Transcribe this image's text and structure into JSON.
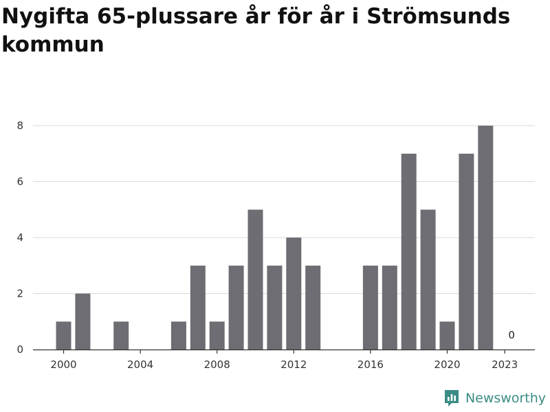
{
  "chart_data": {
    "type": "bar",
    "title": "Nygifta 65-plussare år för år i Strömsunds kommun",
    "xlabel": "",
    "ylabel": "",
    "categories": [
      "2000",
      "2001",
      "2002",
      "2003",
      "2004",
      "2005",
      "2006",
      "2007",
      "2008",
      "2009",
      "2010",
      "2011",
      "2012",
      "2013",
      "2014",
      "2015",
      "2016",
      "2017",
      "2018",
      "2019",
      "2020",
      "2021",
      "2022",
      "2023"
    ],
    "values": [
      1,
      2,
      0,
      1,
      0,
      0,
      1,
      3,
      1,
      3,
      5,
      3,
      4,
      3,
      0,
      0,
      3,
      3,
      7,
      5,
      1,
      7,
      8,
      0
    ],
    "ylim": [
      0,
      8
    ],
    "yticks": [
      0,
      2,
      4,
      6,
      8
    ],
    "xticks": [
      "2000",
      "2004",
      "2008",
      "2012",
      "2016",
      "2020",
      "2023"
    ],
    "data_labels": [
      {
        "category": "2023",
        "text": "0"
      }
    ],
    "grid": true,
    "bar_color": "#6e6d73",
    "grid_color": "#d9d9d9"
  },
  "brand": {
    "name": "Newsworthy",
    "icon": "newsworthy-logo-icon",
    "color": "#3a8c86"
  }
}
